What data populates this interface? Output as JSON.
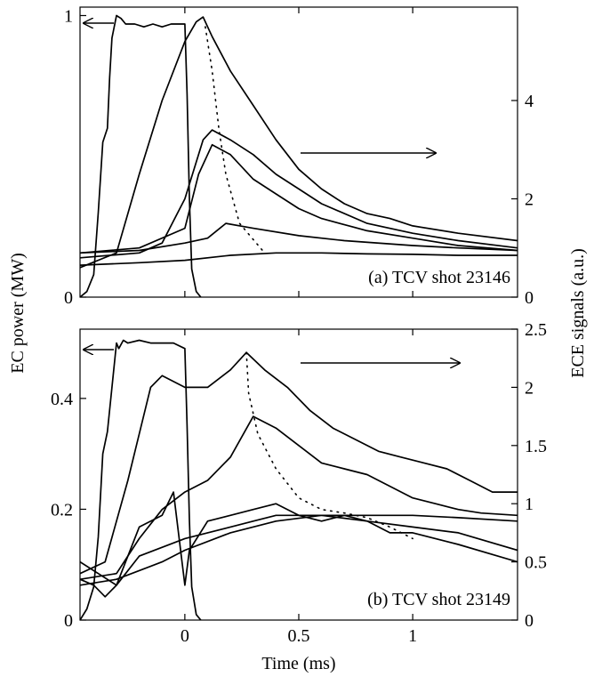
{
  "figure": {
    "y_left_label": "EC power (MW)",
    "y_right_label": "ECE signals (a.u.)",
    "x_label": "Time (ms)"
  },
  "chart_data": [
    {
      "type": "line",
      "panel_label": "(a) TCV shot 23146",
      "xlim": [
        -0.46,
        1.46
      ],
      "ylim_left": [
        0,
        1.03
      ],
      "ylim_right": [
        0,
        5.9
      ],
      "yticks_left": [
        "0",
        "1"
      ],
      "yticks_right": [
        "0",
        "2",
        "4"
      ],
      "xticks": [],
      "grid": false,
      "series": [
        {
          "axis": "left",
          "style": "solid",
          "x": [
            -0.46,
            -0.43,
            -0.4,
            -0.38,
            -0.36,
            -0.34,
            -0.33,
            -0.32,
            -0.3,
            -0.28,
            -0.26,
            -0.22,
            -0.18,
            -0.14,
            -0.1,
            -0.06,
            -0.02,
            0.0,
            0.01,
            0.02,
            0.03,
            0.05,
            0.07
          ],
          "y": [
            0.0,
            0.02,
            0.08,
            0.3,
            0.55,
            0.6,
            0.78,
            0.92,
            1.0,
            0.99,
            0.97,
            0.97,
            0.96,
            0.97,
            0.96,
            0.97,
            0.97,
            0.97,
            0.72,
            0.35,
            0.1,
            0.02,
            0.0
          ]
        },
        {
          "axis": "right",
          "style": "solid",
          "x": [
            -0.46,
            -0.3,
            -0.2,
            -0.1,
            0.0,
            0.05,
            0.08,
            0.12,
            0.2,
            0.3,
            0.4,
            0.5,
            0.6,
            0.7,
            0.8,
            0.9,
            1.0,
            1.2,
            1.46
          ],
          "y": [
            0.6,
            0.9,
            2.5,
            4.0,
            5.2,
            5.6,
            5.7,
            5.3,
            4.6,
            3.9,
            3.2,
            2.6,
            2.2,
            1.9,
            1.7,
            1.6,
            1.45,
            1.3,
            1.15
          ]
        },
        {
          "axis": "right",
          "style": "solid",
          "x": [
            -0.46,
            -0.2,
            -0.1,
            0.0,
            0.08,
            0.12,
            0.2,
            0.3,
            0.4,
            0.5,
            0.6,
            0.8,
            1.0,
            1.2,
            1.46
          ],
          "y": [
            0.8,
            0.9,
            1.1,
            2.0,
            3.2,
            3.4,
            3.2,
            2.9,
            2.5,
            2.2,
            1.9,
            1.5,
            1.3,
            1.15,
            1.0
          ]
        },
        {
          "axis": "right",
          "style": "solid",
          "x": [
            -0.46,
            -0.2,
            0.0,
            0.06,
            0.12,
            0.2,
            0.3,
            0.4,
            0.5,
            0.6,
            0.8,
            1.0,
            1.2,
            1.46
          ],
          "y": [
            0.9,
            1.0,
            1.4,
            2.5,
            3.1,
            2.9,
            2.4,
            2.1,
            1.8,
            1.6,
            1.35,
            1.2,
            1.05,
            0.95
          ]
        },
        {
          "axis": "right",
          "style": "solid",
          "x": [
            -0.46,
            -0.2,
            0.0,
            0.1,
            0.18,
            0.3,
            0.5,
            0.7,
            1.0,
            1.2,
            1.46
          ],
          "y": [
            0.9,
            0.95,
            1.1,
            1.2,
            1.5,
            1.4,
            1.25,
            1.15,
            1.05,
            1.0,
            0.95
          ]
        },
        {
          "axis": "right",
          "style": "solid",
          "x": [
            -0.46,
            -0.2,
            0.0,
            0.2,
            0.4,
            0.6,
            0.8,
            1.0,
            1.2,
            1.46
          ],
          "y": [
            0.65,
            0.7,
            0.75,
            0.85,
            0.9,
            0.9,
            0.88,
            0.87,
            0.85,
            0.85
          ]
        },
        {
          "axis": "right",
          "style": "dotted",
          "x": [
            0.09,
            0.12,
            0.15,
            0.18,
            0.24,
            0.35
          ],
          "y": [
            5.5,
            4.6,
            3.4,
            2.5,
            1.5,
            0.9
          ]
        }
      ]
    },
    {
      "type": "line",
      "panel_label": "(b) TCV shot 23149",
      "xlim": [
        -0.46,
        1.46
      ],
      "ylim_left": [
        0,
        0.525
      ],
      "ylim_right": [
        0,
        2.5
      ],
      "yticks_left": [
        "0",
        "0.2",
        "0.4"
      ],
      "yticks_right": [
        "0",
        "0.5",
        "1",
        "1.5",
        "2",
        "2.5"
      ],
      "xticks": [
        "0",
        "0.5",
        "1"
      ],
      "grid": false,
      "series": [
        {
          "axis": "left",
          "style": "solid",
          "x": [
            -0.46,
            -0.43,
            -0.4,
            -0.38,
            -0.36,
            -0.34,
            -0.32,
            -0.3,
            -0.29,
            -0.27,
            -0.25,
            -0.2,
            -0.15,
            -0.1,
            -0.05,
            0.0,
            0.01,
            0.02,
            0.03,
            0.05,
            0.07
          ],
          "y": [
            0.0,
            0.02,
            0.06,
            0.15,
            0.3,
            0.34,
            0.42,
            0.5,
            0.49,
            0.505,
            0.5,
            0.505,
            0.5,
            0.5,
            0.5,
            0.49,
            0.35,
            0.18,
            0.06,
            0.01,
            0.0
          ]
        },
        {
          "axis": "right",
          "style": "solid",
          "x": [
            -0.46,
            -0.35,
            -0.25,
            -0.15,
            -0.1,
            0.0,
            0.1,
            0.2,
            0.27,
            0.35,
            0.45,
            0.55,
            0.65,
            0.75,
            0.85,
            0.95,
            1.05,
            1.15,
            1.25,
            1.35,
            1.46
          ],
          "y": [
            0.4,
            0.5,
            1.2,
            2.0,
            2.1,
            2.0,
            2.0,
            2.15,
            2.3,
            2.15,
            2.0,
            1.8,
            1.65,
            1.55,
            1.45,
            1.4,
            1.35,
            1.3,
            1.2,
            1.1,
            1.1
          ]
        },
        {
          "axis": "right",
          "style": "solid",
          "x": [
            -0.46,
            -0.3,
            -0.2,
            -0.1,
            0.0,
            0.1,
            0.2,
            0.3,
            0.4,
            0.5,
            0.6,
            0.7,
            0.8,
            0.9,
            1.0,
            1.1,
            1.2,
            1.3,
            1.46
          ],
          "y": [
            0.35,
            0.4,
            0.7,
            0.95,
            1.1,
            1.2,
            1.4,
            1.75,
            1.65,
            1.5,
            1.35,
            1.3,
            1.25,
            1.15,
            1.05,
            1.0,
            0.95,
            0.92,
            0.9
          ]
        },
        {
          "axis": "right",
          "style": "solid",
          "x": [
            -0.46,
            -0.4,
            -0.35,
            -0.3,
            -0.2,
            -0.1,
            -0.05,
            0.0,
            0.02,
            0.1,
            0.2,
            0.3,
            0.4,
            0.5,
            0.6,
            0.7,
            0.8,
            0.9,
            1.0,
            1.2,
            1.46
          ],
          "y": [
            0.35,
            0.3,
            0.2,
            0.3,
            0.8,
            0.9,
            1.1,
            0.3,
            0.6,
            0.85,
            0.9,
            0.95,
            1.0,
            0.9,
            0.85,
            0.9,
            0.85,
            0.75,
            0.75,
            0.65,
            0.5
          ]
        },
        {
          "axis": "right",
          "style": "solid",
          "x": [
            -0.46,
            -0.3,
            -0.2,
            0.0,
            0.1,
            0.2,
            0.3,
            0.4,
            0.5,
            0.6,
            0.8,
            1.0,
            1.2,
            1.46
          ],
          "y": [
            0.5,
            0.3,
            0.55,
            0.7,
            0.75,
            0.8,
            0.85,
            0.9,
            0.9,
            0.9,
            0.85,
            0.8,
            0.75,
            0.6
          ]
        },
        {
          "axis": "right",
          "style": "solid",
          "x": [
            -0.46,
            -0.3,
            -0.1,
            0.0,
            0.2,
            0.4,
            0.6,
            0.8,
            1.0,
            1.2,
            1.46
          ],
          "y": [
            0.3,
            0.35,
            0.5,
            0.6,
            0.75,
            0.85,
            0.9,
            0.9,
            0.9,
            0.88,
            0.85
          ]
        },
        {
          "axis": "right",
          "style": "dotted",
          "x": [
            0.27,
            0.28,
            0.32,
            0.4,
            0.5,
            0.6,
            0.7,
            0.8,
            0.9,
            1.0
          ],
          "y": [
            2.3,
            1.95,
            1.6,
            1.3,
            1.05,
            0.95,
            0.92,
            0.88,
            0.8,
            0.7
          ]
        }
      ]
    }
  ]
}
